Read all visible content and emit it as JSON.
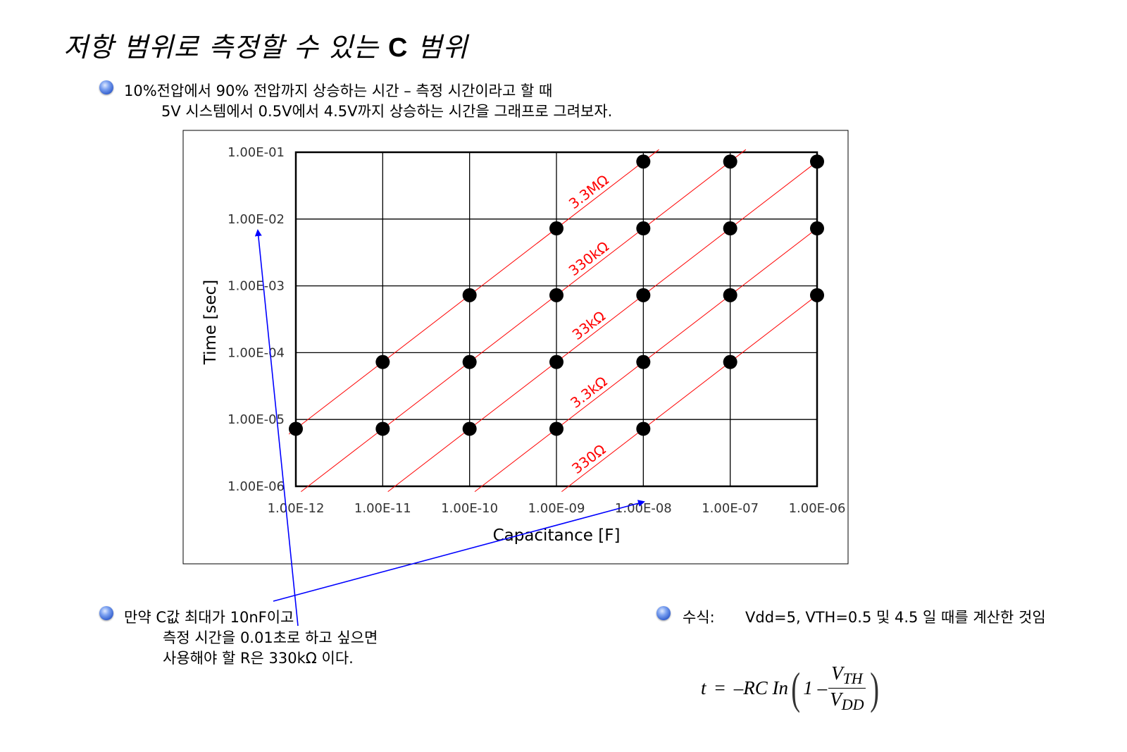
{
  "title": {
    "main": "저항 범위로 측정할 수 있는 ",
    "bold": "C",
    "tail": " 범위"
  },
  "intro": {
    "line1": "10%전압에서 90% 전압까지 상승하는 시간 – 측정 시간이라고 할 때",
    "line2": "5V 시스템에서 0.5V에서 4.5V까지 상승하는 시간을 그래프로 그려보자."
  },
  "note": {
    "line1": "만약 C값 최대가 10nF이고",
    "line2": "측정 시간을 0.01초로 하고 싶으면",
    "line3": "사용해야 할 R은 330kΩ  이다."
  },
  "formula_note": {
    "label": "수식:",
    "text": "Vdd=5, VTH=0.5 및 4.5 일 때를 계산한 것임"
  },
  "formula": {
    "lhs": "t",
    "eq": "=",
    "rhs": "–RC In",
    "one": "1 –",
    "num": "V",
    "num_sub": "TH",
    "den": "V",
    "den_sub": "DD"
  },
  "colors": {
    "points": "#000000",
    "resistance_lines": "#ff0000",
    "annotation_arrows": "#0000ff",
    "bullet": "#3a66d6"
  },
  "chart_data": {
    "type": "scatter",
    "xlabel": "Capacitance [F]",
    "ylabel": "Time [sec]",
    "xscale": "log",
    "yscale": "log",
    "xlim": [
      1e-12,
      1e-06
    ],
    "ylim": [
      1e-06,
      0.1
    ],
    "grid": true,
    "xticks": [
      "1.00E-12",
      "1.00E-11",
      "1.00E-10",
      "1.00E-09",
      "1.00E-08",
      "1.00E-07",
      "1.00E-06"
    ],
    "yticks": [
      "1.00E-01",
      "1.00E-02",
      "1.00E-03",
      "1.00E-04",
      "1.00E-05",
      "1.00E-06"
    ],
    "series": [
      {
        "name": "3.3MΩ",
        "R": 3300000,
        "points": [
          [
            1e-12,
            7.25e-06
          ],
          [
            1e-11,
            7.25e-05
          ],
          [
            1e-10,
            0.000725
          ],
          [
            1e-09,
            0.00725
          ],
          [
            1e-08,
            0.0725
          ]
        ]
      },
      {
        "name": "330kΩ",
        "R": 330000,
        "points": [
          [
            1e-11,
            7.25e-06
          ],
          [
            1e-10,
            7.25e-05
          ],
          [
            1e-09,
            0.000725
          ],
          [
            1e-08,
            0.00725
          ],
          [
            1e-07,
            0.0725
          ]
        ]
      },
      {
        "name": "33kΩ",
        "R": 33000,
        "points": [
          [
            1e-10,
            7.25e-06
          ],
          [
            1e-09,
            7.25e-05
          ],
          [
            1e-08,
            0.000725
          ],
          [
            1e-07,
            0.00725
          ],
          [
            1e-06,
            0.0725
          ]
        ]
      },
      {
        "name": "3.3kΩ",
        "R": 3300,
        "points": [
          [
            1e-09,
            7.25e-06
          ],
          [
            1e-08,
            7.25e-05
          ],
          [
            1e-07,
            0.000725
          ],
          [
            1e-06,
            0.00725
          ]
        ]
      },
      {
        "name": "330Ω",
        "R": 330,
        "points": [
          [
            1e-08,
            7.25e-06
          ],
          [
            1e-07,
            7.25e-05
          ],
          [
            1e-06,
            0.000725
          ]
        ]
      }
    ]
  }
}
